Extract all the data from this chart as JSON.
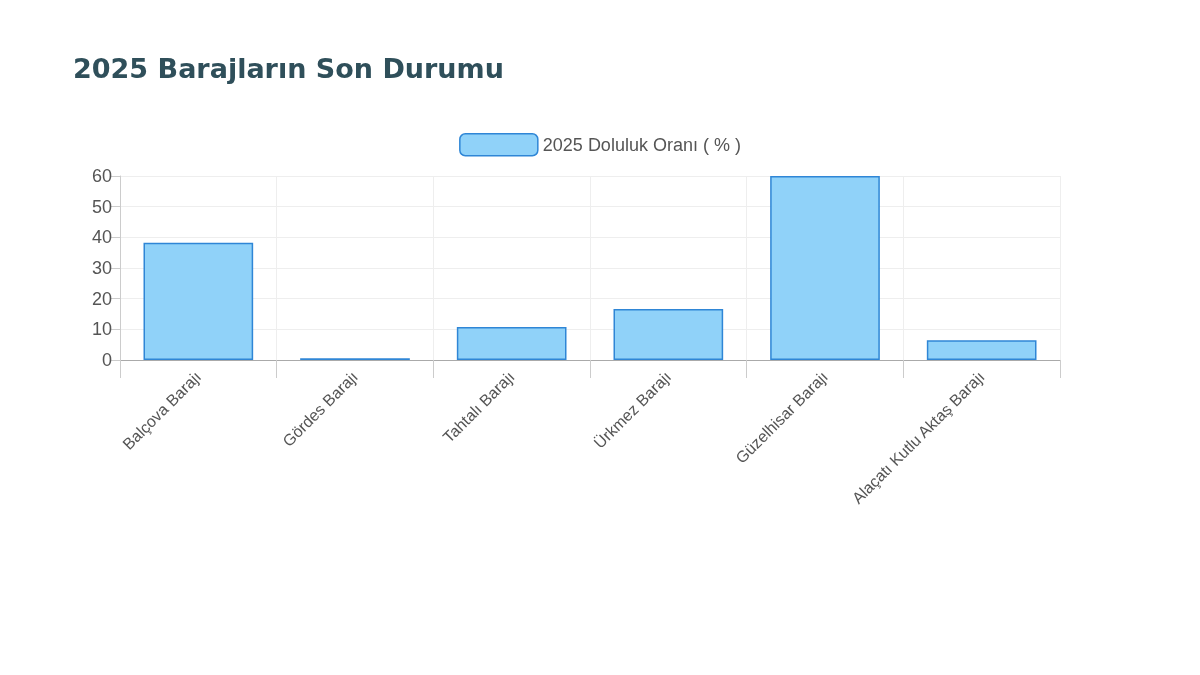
{
  "chart_data": {
    "type": "bar",
    "title": "2025 Barajların Son Durumu",
    "categories": [
      "Balçova Barajı",
      "Gördes Barajı",
      "Tahtalı Barajı",
      "Ürkmez Barajı",
      "Güzelhisar Barajı",
      "Alaçatı Kutlu Aktaş Barajı"
    ],
    "series": [
      {
        "name": "2025 Doluluk Oranı ( % )",
        "color": "#90d2f9",
        "values": [
          38.2,
          0.6,
          10.8,
          16.6,
          60,
          6.4
        ]
      }
    ],
    "ylim": [
      0,
      60
    ],
    "yticks": [
      0,
      10,
      20,
      30,
      40,
      50,
      60
    ],
    "grid": true,
    "legend": "top"
  }
}
